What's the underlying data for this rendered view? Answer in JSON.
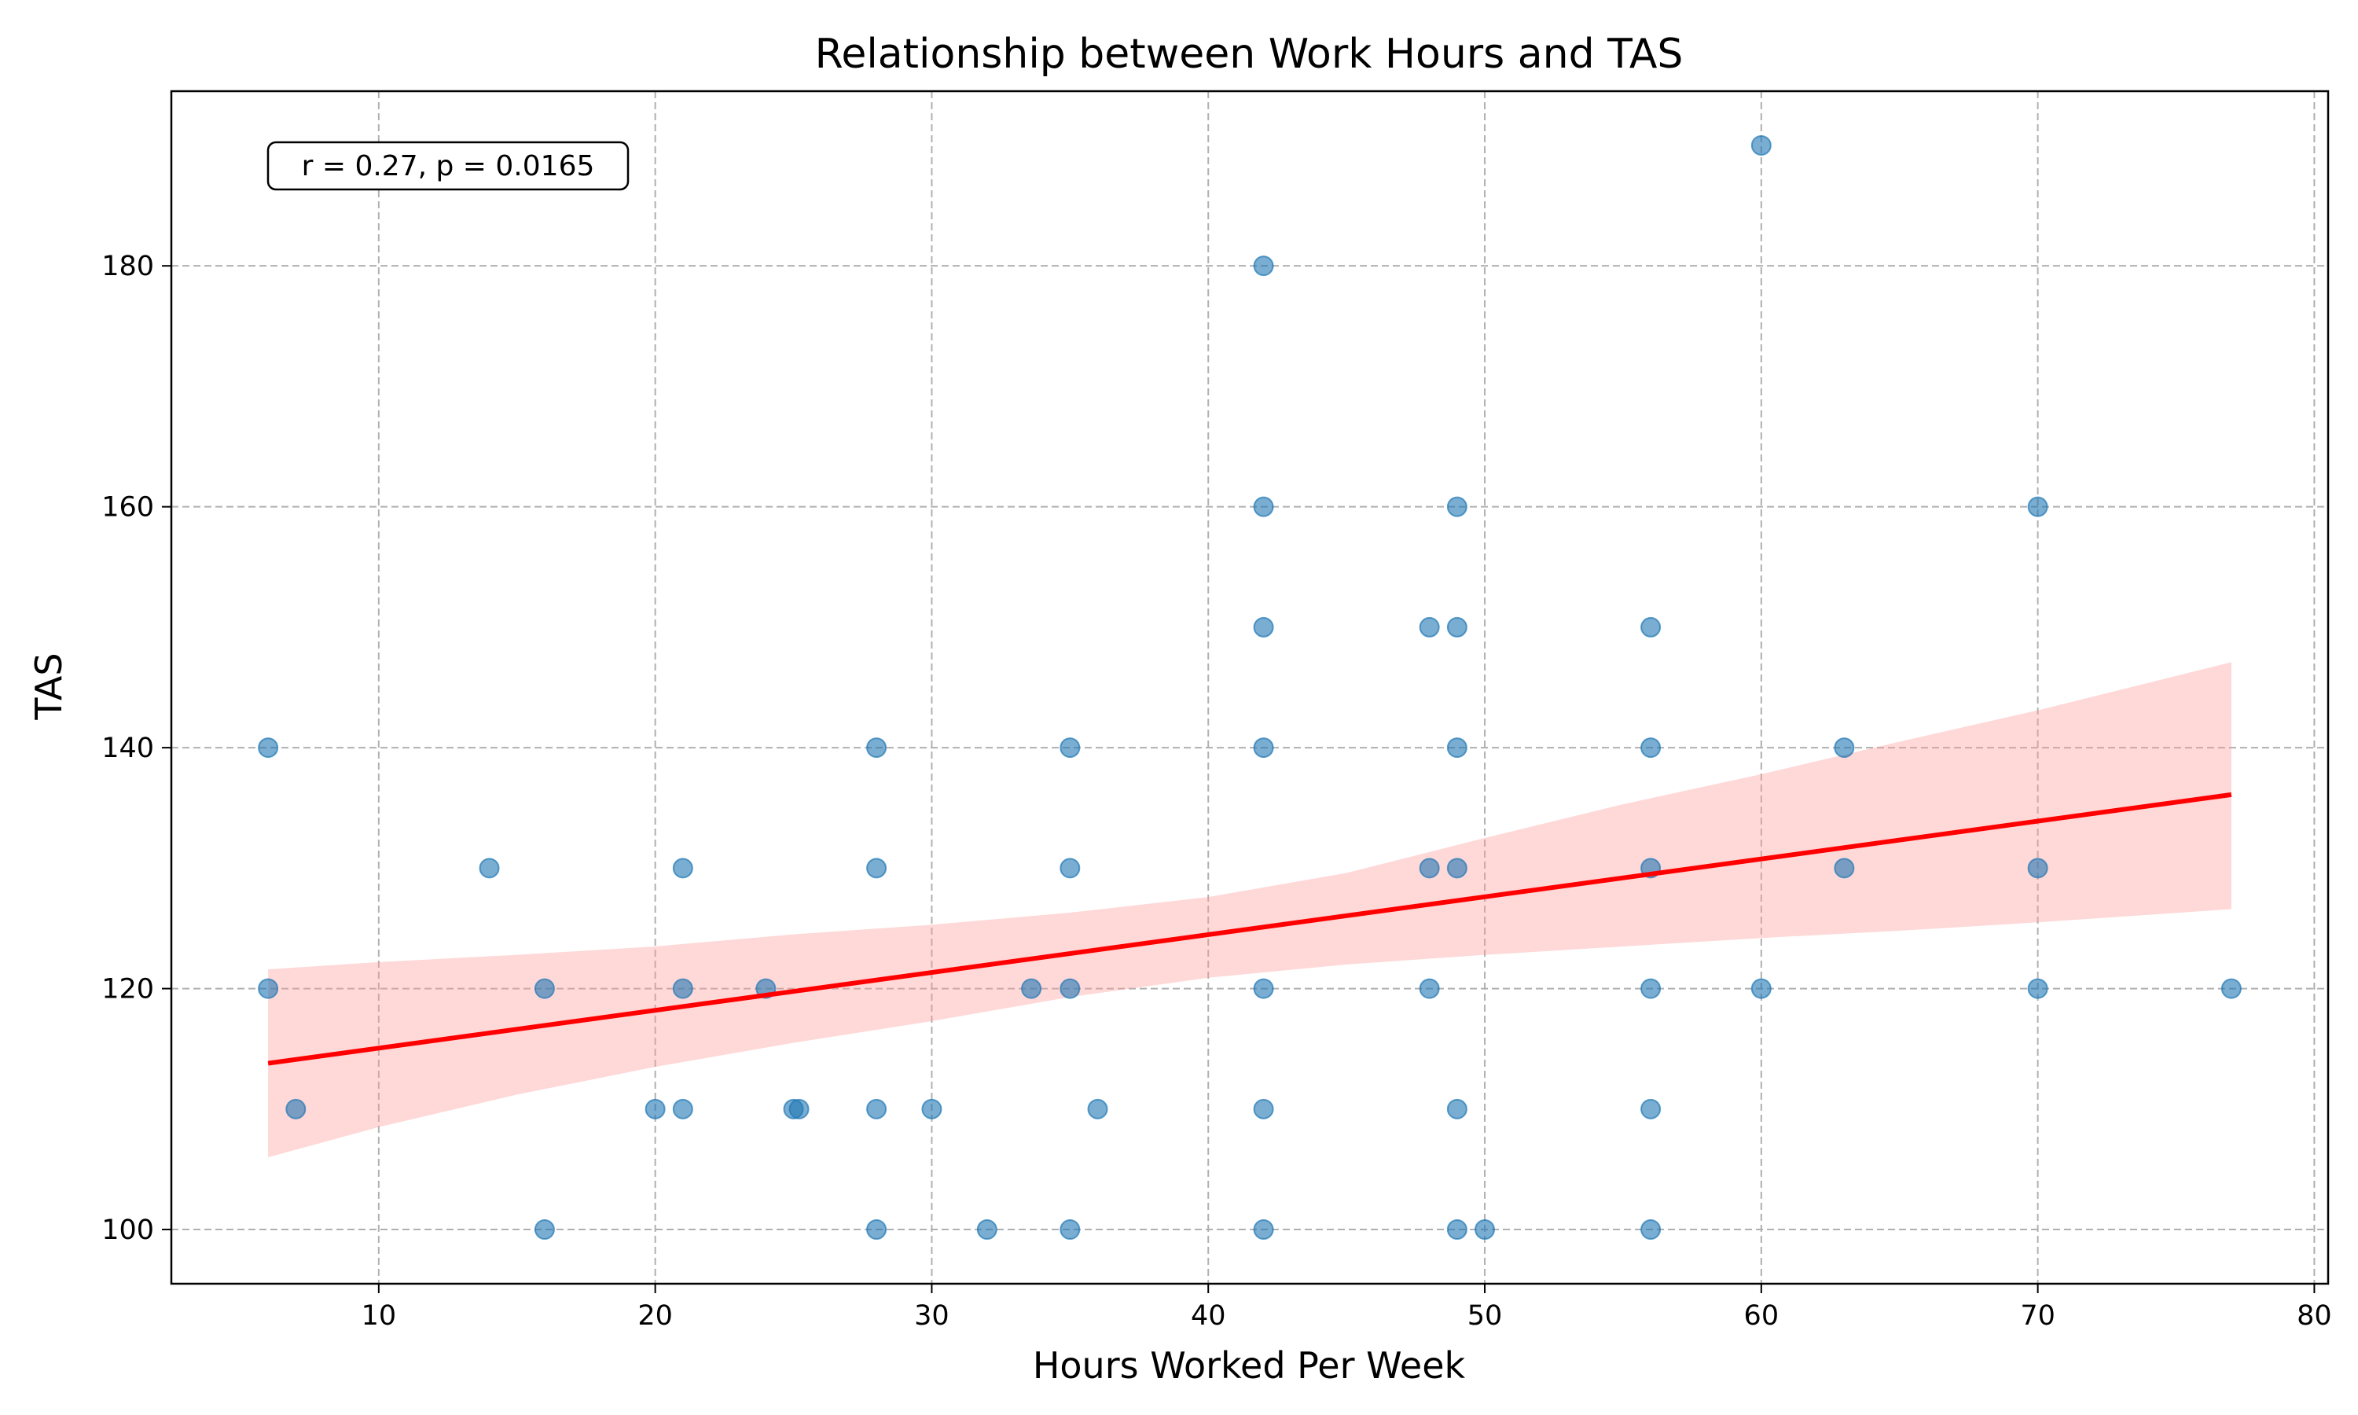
{
  "chart_data": {
    "type": "scatter",
    "title": "Relationship between Work Hours and TAS",
    "xlabel": "Hours Worked Per Week",
    "ylabel": "TAS",
    "xlim": [
      2.5,
      80.5
    ],
    "ylim": [
      95.5,
      194.5
    ],
    "xticks": [
      10,
      20,
      30,
      40,
      50,
      60,
      70,
      80
    ],
    "yticks": [
      100,
      120,
      140,
      160,
      180
    ],
    "grid": true,
    "annotation": "r = 0.27, p = 0.0165",
    "annotation_position": "top-left",
    "colors": {
      "points": "#1f77b4",
      "fit_line": "#ff0000",
      "confidence_band": "#ff9999",
      "grid": "#b0b0b0"
    },
    "points": [
      [
        6,
        140
      ],
      [
        6,
        120
      ],
      [
        7,
        110
      ],
      [
        14,
        130
      ],
      [
        16,
        120
      ],
      [
        16,
        100
      ],
      [
        20,
        110
      ],
      [
        21,
        130
      ],
      [
        21,
        120
      ],
      [
        21,
        110
      ],
      [
        24,
        120
      ],
      [
        25,
        110
      ],
      [
        25.2,
        110
      ],
      [
        28,
        140
      ],
      [
        28,
        130
      ],
      [
        28,
        110
      ],
      [
        28,
        100
      ],
      [
        30,
        110
      ],
      [
        32,
        100
      ],
      [
        33.6,
        120
      ],
      [
        35,
        140
      ],
      [
        35,
        130
      ],
      [
        35,
        120
      ],
      [
        35,
        100
      ],
      [
        36,
        110
      ],
      [
        42,
        180
      ],
      [
        42,
        160
      ],
      [
        42,
        150
      ],
      [
        42,
        140
      ],
      [
        42,
        120
      ],
      [
        42,
        110
      ],
      [
        42,
        100
      ],
      [
        48,
        150
      ],
      [
        48,
        130
      ],
      [
        48,
        120
      ],
      [
        49,
        160
      ],
      [
        49,
        150
      ],
      [
        49,
        140
      ],
      [
        49,
        130
      ],
      [
        49,
        110
      ],
      [
        49,
        100
      ],
      [
        50,
        100
      ],
      [
        56,
        150
      ],
      [
        56,
        140
      ],
      [
        56,
        130
      ],
      [
        56,
        120
      ],
      [
        56,
        110
      ],
      [
        56,
        100
      ],
      [
        60,
        190
      ],
      [
        60,
        120
      ],
      [
        63,
        140
      ],
      [
        63,
        130
      ],
      [
        70,
        160
      ],
      [
        70,
        130
      ],
      [
        70,
        120
      ],
      [
        77,
        120
      ]
    ],
    "regression_line": {
      "x": [
        6,
        77
      ],
      "y": [
        113.8,
        136.1
      ]
    },
    "confidence_band": {
      "x": [
        6,
        10,
        15,
        20,
        25,
        30,
        35,
        40,
        45,
        50,
        55,
        60,
        65,
        70,
        77
      ],
      "lower": [
        106.0,
        108.5,
        111.2,
        113.5,
        115.5,
        117.3,
        119.3,
        120.9,
        122.0,
        122.8,
        123.5,
        124.2,
        124.8,
        125.5,
        126.6
      ],
      "upper": [
        121.6,
        122.2,
        122.8,
        123.5,
        124.5,
        125.3,
        126.3,
        127.6,
        129.6,
        132.5,
        135.3,
        137.8,
        140.5,
        143.1,
        147.1
      ]
    }
  }
}
